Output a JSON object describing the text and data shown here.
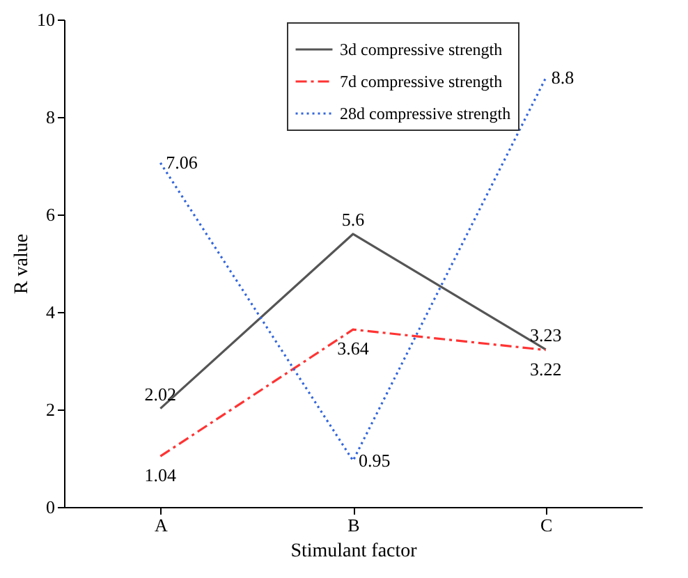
{
  "chart_data": {
    "type": "line",
    "xlabel": "Stimulant factor",
    "ylabel": "R value",
    "categories": [
      "A",
      "B",
      "C"
    ],
    "series": [
      {
        "name": "3d compressive strength",
        "color": "#555555",
        "line_style": "solid",
        "values": [
          2.02,
          5.6,
          3.23
        ]
      },
      {
        "name": "7d compressive strength",
        "color": "#ff3333",
        "line_style": "dashed",
        "values": [
          1.04,
          3.64,
          3.22
        ]
      },
      {
        "name": "28d compressive strength",
        "color": "#3366dd",
        "line_style": "dotted",
        "values": [
          7.06,
          0.95,
          8.8
        ]
      }
    ],
    "ylim": [
      0,
      10
    ],
    "yticks": [
      0,
      2,
      4,
      6,
      8,
      10
    ],
    "grid": false,
    "legend": "top right",
    "data_labels": true,
    "marker": "none"
  }
}
